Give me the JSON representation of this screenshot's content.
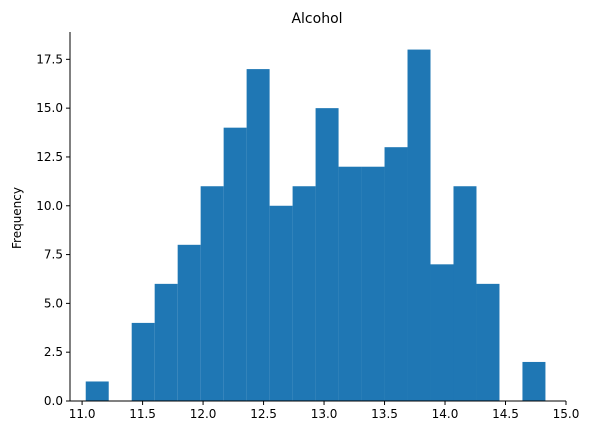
{
  "chart_data": {
    "type": "bar",
    "title": "Alcohol",
    "xlabel": "",
    "ylabel": "Frequency",
    "bin_edges": [
      11.03,
      11.22,
      11.41,
      11.6,
      11.79,
      11.98,
      12.17,
      12.36,
      12.55,
      12.74,
      12.93,
      13.12,
      13.31,
      13.5,
      13.69,
      13.88,
      14.07,
      14.26,
      14.45,
      14.64,
      14.83
    ],
    "values": [
      1,
      0,
      4,
      6,
      8,
      11,
      14,
      17,
      10,
      11,
      15,
      12,
      12,
      13,
      18,
      7,
      11,
      6,
      0,
      2
    ],
    "xlim": [
      10.9,
      15.0
    ],
    "ylim": [
      0,
      18.9
    ],
    "xticks": [
      11.0,
      11.5,
      12.0,
      12.5,
      13.0,
      13.5,
      14.0,
      14.5,
      15.0
    ],
    "yticks": [
      0.0,
      2.5,
      5.0,
      7.5,
      10.0,
      12.5,
      15.0,
      17.5
    ],
    "xtick_labels": [
      "11.0",
      "11.5",
      "12.0",
      "12.5",
      "13.0",
      "13.5",
      "14.0",
      "14.5",
      "15.0"
    ],
    "ytick_labels": [
      "0.0",
      "2.5",
      "5.0",
      "7.5",
      "10.0",
      "12.5",
      "15.0",
      "17.5"
    ],
    "bar_color": "#1f77b4",
    "grid": false,
    "spines": [
      "left",
      "bottom"
    ]
  }
}
